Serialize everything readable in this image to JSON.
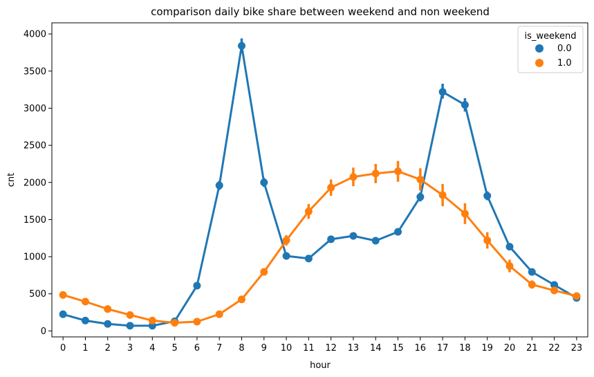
{
  "chart_data": {
    "type": "line",
    "title": "comparison daily bike share between weekend and non weekend",
    "xlabel": "hour",
    "ylabel": "cnt",
    "categories": [
      "0",
      "1",
      "2",
      "3",
      "4",
      "5",
      "6",
      "7",
      "8",
      "9",
      "10",
      "11",
      "12",
      "13",
      "14",
      "15",
      "16",
      "17",
      "18",
      "19",
      "20",
      "21",
      "22",
      "23"
    ],
    "yticks": [
      0,
      500,
      1000,
      1500,
      2000,
      2500,
      3000,
      3500,
      4000
    ],
    "ylim": [
      -80,
      4150
    ],
    "grid": false,
    "legend": {
      "title": "is_weekend",
      "placement": "top-right"
    },
    "series": [
      {
        "name": "0.0",
        "color": "#1f77b4",
        "values": [
          225,
          140,
          95,
          70,
          70,
          130,
          610,
          1960,
          3840,
          2000,
          1010,
          975,
          1235,
          1280,
          1215,
          1335,
          1805,
          3220,
          3045,
          1820,
          1135,
          795,
          620,
          445
        ],
        "err_low": [
          205,
          125,
          85,
          62,
          62,
          118,
          580,
          1900,
          3740,
          1940,
          975,
          945,
          1195,
          1240,
          1175,
          1295,
          1745,
          3130,
          2955,
          1760,
          1095,
          765,
          595,
          425
        ],
        "err_high": [
          245,
          155,
          105,
          78,
          78,
          142,
          640,
          2020,
          3940,
          2060,
          1045,
          1005,
          1275,
          1320,
          1255,
          1375,
          1865,
          3330,
          3135,
          1880,
          1175,
          825,
          645,
          465
        ]
      },
      {
        "name": "1.0",
        "color": "#ff7f0e",
        "values": [
          485,
          395,
          295,
          215,
          140,
          110,
          125,
          225,
          425,
          795,
          1220,
          1610,
          1930,
          2075,
          2120,
          2150,
          2040,
          1830,
          1580,
          1220,
          875,
          625,
          545,
          470
        ],
        "err_low": [
          455,
          370,
          275,
          195,
          125,
          98,
          110,
          200,
          385,
          745,
          1150,
          1510,
          1820,
          1950,
          1990,
          2010,
          1890,
          1680,
          1440,
          1110,
          790,
          570,
          505,
          440
        ],
        "err_high": [
          515,
          420,
          315,
          235,
          155,
          122,
          140,
          250,
          465,
          845,
          1290,
          1710,
          2040,
          2200,
          2250,
          2290,
          2190,
          1980,
          1720,
          1330,
          960,
          680,
          585,
          500
        ]
      }
    ]
  }
}
